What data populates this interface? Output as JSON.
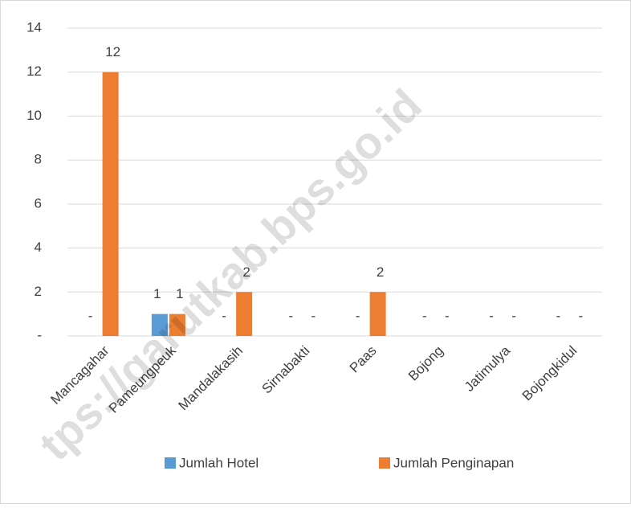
{
  "chart_data": {
    "type": "bar",
    "categories": [
      "Mancagahar",
      "Pameungpeuk",
      "Mandalakasih",
      "Sirnabakti",
      "Paas",
      "Bojong",
      "Jatimulya",
      "Bojongkidul"
    ],
    "series": [
      {
        "name": "Jumlah Hotel",
        "color": "#5b9bd5",
        "values": [
          0,
          1,
          0,
          0,
          0,
          0,
          0,
          0
        ],
        "value_labels": [
          "-",
          "1",
          "-",
          "-",
          "-",
          "-",
          "-",
          "-"
        ]
      },
      {
        "name": "Jumlah Penginapan",
        "color": "#ed7d31",
        "values": [
          12,
          1,
          2,
          0,
          2,
          0,
          0,
          0
        ],
        "value_labels": [
          "12",
          "1",
          "2",
          "-",
          "2",
          "-",
          "-",
          "-"
        ]
      }
    ],
    "ylim": [
      0,
      14
    ],
    "yticks": [
      {
        "value": 0,
        "label": "-"
      },
      2,
      4,
      6,
      8,
      10,
      12,
      14
    ],
    "grid": true,
    "legend": "bottom",
    "watermark": "tps://garutkab.bps.go.id"
  }
}
